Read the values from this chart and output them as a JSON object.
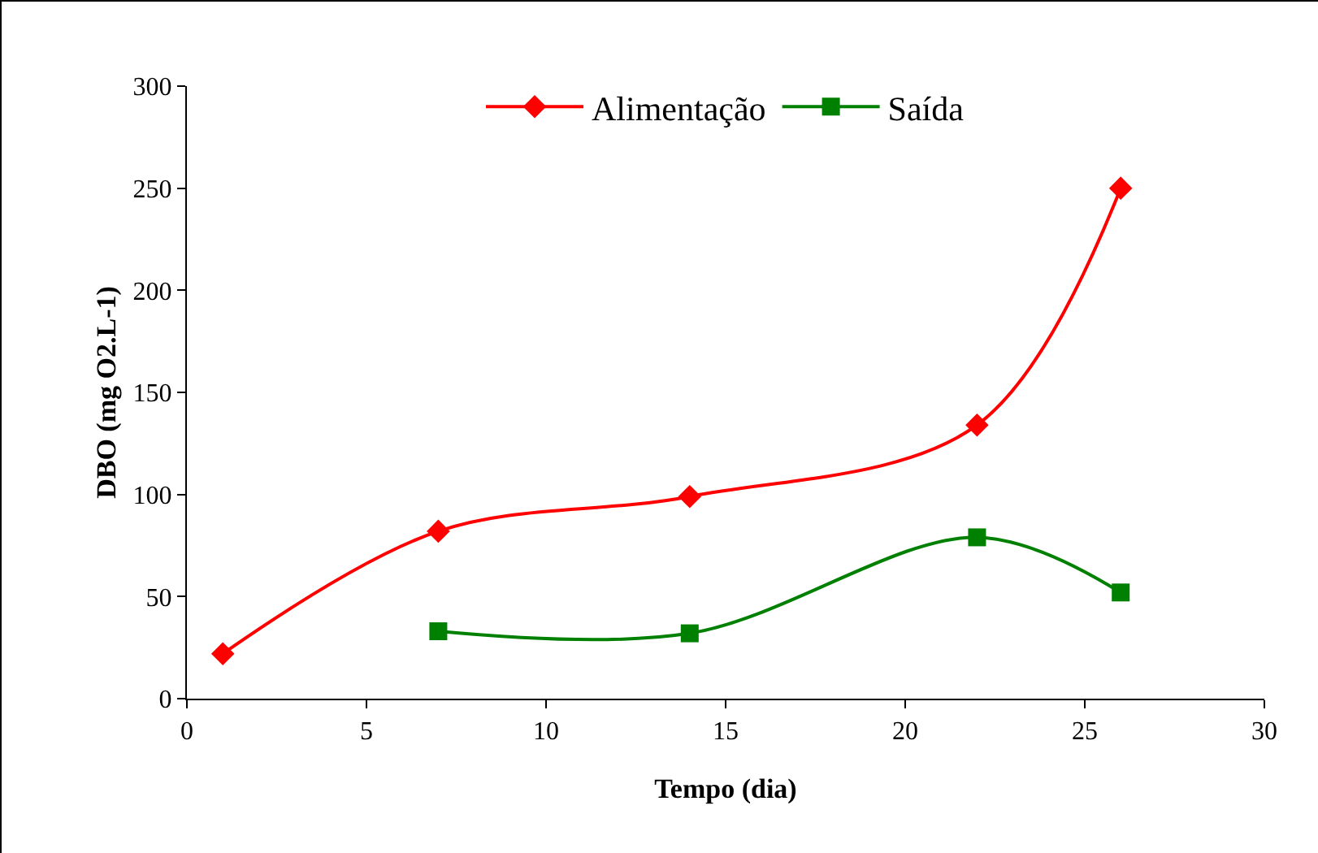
{
  "chart_data": {
    "type": "line",
    "xlabel": "Tempo (dia)",
    "ylabel": "DBO (mg O2.L-1)",
    "xlim": [
      0,
      30
    ],
    "xticks": [
      0,
      5,
      10,
      15,
      20,
      25,
      30
    ],
    "ylim": [
      0,
      300
    ],
    "yticks": [
      0,
      50,
      100,
      150,
      200,
      250,
      300
    ],
    "grid": false,
    "legend": "top",
    "line_style": "solid",
    "series": [
      {
        "name": "Alimentação",
        "color": "#ff0000",
        "marker": "diamond",
        "x": [
          1,
          7,
          14,
          22,
          26
        ],
        "values": [
          22,
          82,
          99,
          134,
          250
        ]
      },
      {
        "name": "Saída",
        "color": "#008000",
        "marker": "square",
        "x": [
          7,
          14,
          22,
          26
        ],
        "values": [
          33,
          32,
          79,
          52
        ]
      }
    ]
  }
}
